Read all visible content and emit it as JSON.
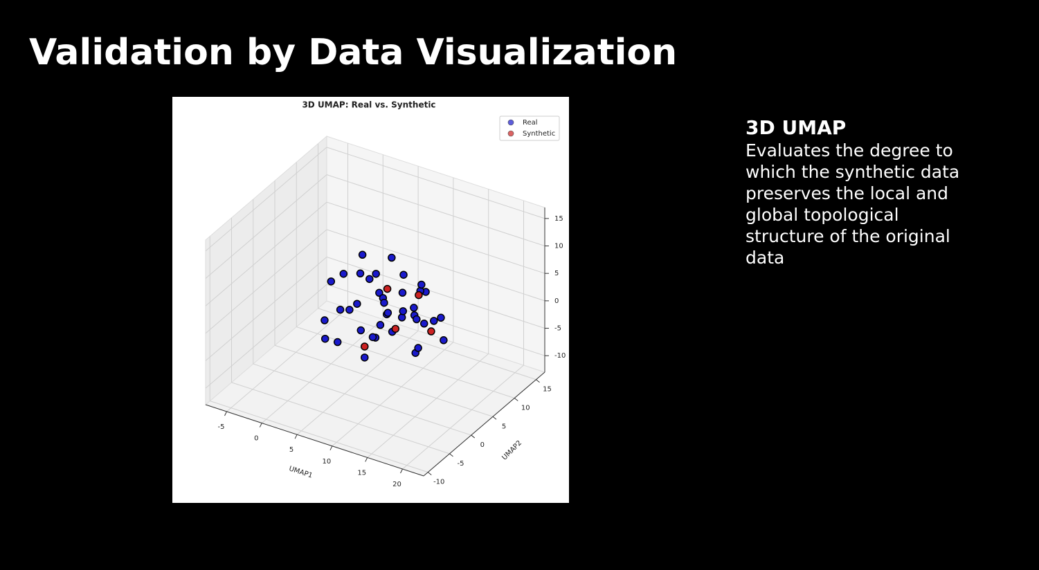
{
  "title": "Validation by Data Visualization",
  "chart_data": {
    "type": "scatter3d",
    "title": "3D UMAP: Real vs. Synthetic",
    "xlabel": "UMAP1",
    "ylabel": "UMAP2",
    "xlim": [
      -8,
      23
    ],
    "xticks": [
      -5,
      0,
      5,
      10,
      15,
      20
    ],
    "ylim": [
      -11,
      17
    ],
    "yticks": [
      -10,
      -5,
      0,
      5,
      10,
      15
    ],
    "zlim": [
      -13,
      17
    ],
    "zticks": [
      -10,
      -5,
      0,
      5,
      10,
      15
    ],
    "grid": true,
    "legend": "upper right",
    "series": [
      {
        "name": "Real",
        "color": "#1a1acc",
        "x": [
          0,
          2,
          3,
          5,
          6,
          7,
          8,
          9,
          10,
          11,
          12,
          13,
          14,
          4,
          6,
          8,
          10,
          12,
          3,
          5,
          7,
          9,
          11,
          13,
          15,
          2,
          4,
          6,
          8,
          10,
          12,
          14,
          5,
          7,
          9,
          11,
          1,
          3,
          13,
          16
        ],
        "y": [
          5,
          6,
          3,
          8,
          2,
          10,
          4,
          7,
          1,
          9,
          5,
          3,
          6,
          0,
          12,
          -2,
          8,
          2,
          7,
          -1,
          5,
          11,
          0,
          4,
          6,
          9,
          -3,
          3,
          6,
          -1,
          7,
          2,
          10,
          4,
          0,
          8,
          2,
          9,
          -2,
          5
        ],
        "z": [
          2,
          -3,
          6,
          0,
          8,
          -5,
          3,
          -1,
          5,
          2,
          -6,
          4,
          0,
          -4,
          1,
          6,
          -2,
          7,
          -7,
          3,
          -3,
          0,
          4,
          -4,
          1,
          5,
          2,
          -8,
          9,
          0,
          -2,
          3,
          -5,
          7,
          -1,
          4,
          -6,
          1,
          3,
          -2
        ]
      },
      {
        "name": "Synthetic",
        "color": "#cc2222",
        "x": [
          8,
          11,
          13,
          6,
          10
        ],
        "y": [
          5,
          2,
          7,
          3,
          9
        ],
        "z": [
          4,
          0,
          -3,
          -6,
          1
        ]
      }
    ]
  },
  "panel": {
    "heading": "3D UMAP",
    "body": "Evaluates the degree to which the synthetic data preserves the local and global topological structure of the original data"
  }
}
